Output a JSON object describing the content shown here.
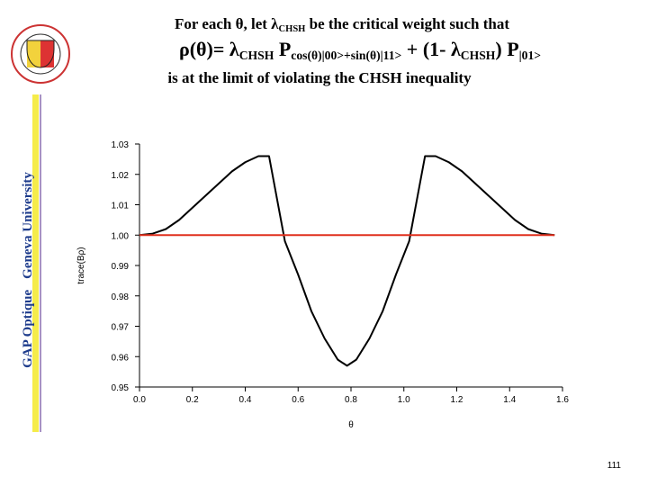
{
  "slide": {
    "title_lines": [
      [
        "For each θ, let λ",
        "CHSH",
        " be the critical weight such that"
      ],
      [
        "ρ(θ)= λ",
        "CHSH",
        " P",
        "cos(θ)|00>+sin(θ)|11>",
        " + (1- λ",
        "CHSH",
        ") P",
        "|01>"
      ],
      [
        "is at the limit of violating the CHSH inequality"
      ]
    ],
    "side_text": [
      "GAP Optique",
      "Geneva University"
    ],
    "page_number": "111"
  },
  "chart_data": {
    "type": "line",
    "x_label": "θ",
    "y_label": "trace(Bρ)",
    "xlim": [
      0,
      1.6
    ],
    "ylim": [
      0.95,
      1.03
    ],
    "xticks": [
      {
        "value": 0,
        "label": "0.0"
      },
      0.2,
      0.4,
      0.6,
      0.8,
      {
        "value": 1,
        "label": "1.0"
      },
      1.2,
      1.4,
      1.6
    ],
    "yticks": [
      0.95,
      0.96,
      0.97,
      0.98,
      0.99,
      {
        "value": 1,
        "label": "1.00"
      },
      1.01,
      1.02,
      1.03
    ],
    "series": [
      {
        "color": "#000000",
        "x": [
          0,
          0.05,
          0.1,
          0.15,
          0.2,
          0.25,
          0.3,
          0.35,
          0.4,
          0.45,
          0.49,
          0.55,
          0.6,
          0.65,
          0.7,
          0.75,
          0.785,
          0.82,
          0.87,
          0.92,
          0.97,
          1.02,
          1.08,
          1.12,
          1.17,
          1.22,
          1.27,
          1.32,
          1.37,
          1.42,
          1.47,
          1.52,
          1.57
        ],
        "values": [
          1.0,
          1.0005,
          1.002,
          1.005,
          1.009,
          1.013,
          1.017,
          1.021,
          1.024,
          1.026,
          1.026,
          0.998,
          0.987,
          0.975,
          0.966,
          0.959,
          0.957,
          0.959,
          0.966,
          0.975,
          0.987,
          0.998,
          1.026,
          1.026,
          1.024,
          1.021,
          1.017,
          1.013,
          1.009,
          1.005,
          1.002,
          1.0005,
          1.0
        ]
      },
      {
        "color": "#e0301e",
        "x": [
          0,
          1.57
        ],
        "values": [
          1,
          1
        ]
      }
    ]
  }
}
